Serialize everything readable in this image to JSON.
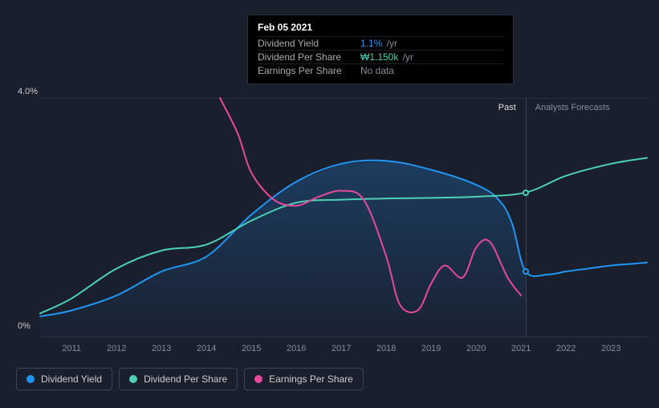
{
  "tooltip": {
    "date": "Feb 05 2021",
    "rows": [
      {
        "label": "Dividend Yield",
        "value": "1.1%",
        "unit": "/yr",
        "color": "#2196f3"
      },
      {
        "label": "Dividend Per Share",
        "value": "₩1.150k",
        "unit": "/yr",
        "color": "#4dd0b5"
      },
      {
        "label": "Earnings Per Share",
        "value": "No data",
        "unit": "",
        "color": "#888c99"
      }
    ]
  },
  "chart": {
    "type": "line",
    "background_color": "#1a1f2e",
    "grid_color": "#2a3142",
    "ylim": [
      0,
      4
    ],
    "y_unit": "%",
    "y_top_label": "4.0%",
    "y_bottom_label": "0%",
    "x_range": [
      2010.3,
      2023.8
    ],
    "x_ticks": [
      "2011",
      "2012",
      "2013",
      "2014",
      "2015",
      "2016",
      "2017",
      "2018",
      "2019",
      "2020",
      "2021",
      "2022",
      "2023"
    ],
    "region_labels": {
      "past": "Past",
      "forecast": "Analysts Forecasts"
    },
    "divider_x": 2021.1,
    "cursor_x": 2021.1,
    "line_width": 2,
    "series": [
      {
        "id": "dividend_yield",
        "label": "Dividend Yield",
        "color": "#2196f3",
        "marker_at_cursor": true,
        "points": [
          [
            2010.3,
            0.35
          ],
          [
            2011,
            0.45
          ],
          [
            2012,
            0.7
          ],
          [
            2013,
            1.1
          ],
          [
            2014,
            1.35
          ],
          [
            2015,
            2.05
          ],
          [
            2016,
            2.6
          ],
          [
            2017,
            2.9
          ],
          [
            2018,
            2.95
          ],
          [
            2019,
            2.8
          ],
          [
            2020,
            2.55
          ],
          [
            2020.5,
            2.3
          ],
          [
            2020.8,
            1.9
          ],
          [
            2021.1,
            1.1
          ],
          [
            2021.6,
            1.05
          ],
          [
            2022,
            1.1
          ],
          [
            2022.5,
            1.15
          ],
          [
            2023,
            1.2
          ],
          [
            2023.5,
            1.23
          ],
          [
            2023.8,
            1.25
          ]
        ]
      },
      {
        "id": "dividend_per_share",
        "label": "Dividend Per Share",
        "color": "#4dd0b5",
        "marker_at_cursor": true,
        "points": [
          [
            2010.3,
            0.4
          ],
          [
            2011,
            0.65
          ],
          [
            2012,
            1.15
          ],
          [
            2013,
            1.45
          ],
          [
            2014,
            1.55
          ],
          [
            2015,
            1.95
          ],
          [
            2016,
            2.25
          ],
          [
            2017,
            2.3
          ],
          [
            2018,
            2.32
          ],
          [
            2019,
            2.33
          ],
          [
            2020,
            2.35
          ],
          [
            2021.1,
            2.42
          ],
          [
            2022,
            2.7
          ],
          [
            2023,
            2.9
          ],
          [
            2023.8,
            3.0
          ]
        ]
      },
      {
        "id": "earnings_per_share",
        "label": "Earnings Per Share",
        "color": "#e6499a",
        "marker_at_cursor": false,
        "points": [
          [
            2014.3,
            4.0
          ],
          [
            2014.7,
            3.4
          ],
          [
            2015,
            2.75
          ],
          [
            2015.5,
            2.3
          ],
          [
            2016,
            2.2
          ],
          [
            2016.5,
            2.35
          ],
          [
            2017,
            2.45
          ],
          [
            2017.5,
            2.3
          ],
          [
            2018,
            1.35
          ],
          [
            2018.3,
            0.55
          ],
          [
            2018.7,
            0.45
          ],
          [
            2019,
            0.9
          ],
          [
            2019.3,
            1.2
          ],
          [
            2019.7,
            1.0
          ],
          [
            2020,
            1.5
          ],
          [
            2020.3,
            1.6
          ],
          [
            2020.7,
            1.0
          ],
          [
            2021,
            0.7
          ]
        ]
      }
    ]
  },
  "legend": [
    {
      "label": "Dividend Yield",
      "color": "#2196f3"
    },
    {
      "label": "Dividend Per Share",
      "color": "#4dd0b5"
    },
    {
      "label": "Earnings Per Share",
      "color": "#e6499a"
    }
  ]
}
